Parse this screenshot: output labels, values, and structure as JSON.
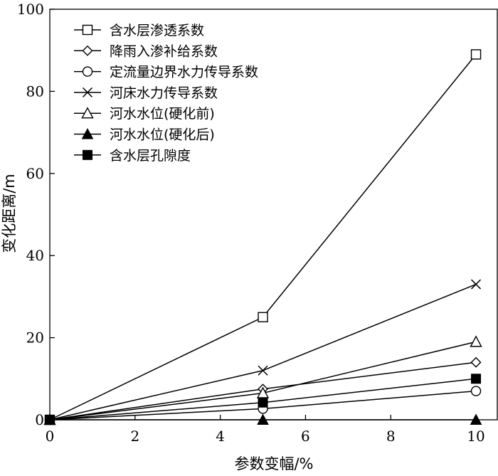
{
  "chart_data": {
    "type": "line",
    "xlabel": "参数变幅/%",
    "ylabel": "变化距离/m",
    "xlim": [
      0,
      10.5
    ],
    "ylim": [
      0,
      100
    ],
    "x_ticks": [
      0,
      2,
      4,
      6,
      8,
      10
    ],
    "y_ticks": [
      0,
      20,
      40,
      60,
      80,
      100
    ],
    "x_tick_labels": [
      "0",
      "2",
      "4",
      "6",
      "8",
      "10"
    ],
    "y_tick_labels": [
      "0",
      "20",
      "40",
      "60",
      "80",
      "100"
    ],
    "x": [
      0,
      5,
      10
    ],
    "grid": false,
    "legend_position": "top-left",
    "series": [
      {
        "name": "含水层渗透系数",
        "marker": "square-open",
        "values": [
          0,
          25,
          89
        ]
      },
      {
        "name": "降雨入渗补给系数",
        "marker": "diamond-open",
        "values": [
          0,
          7.5,
          14
        ]
      },
      {
        "name": "定流量边界水力传导系数",
        "marker": "circle-open",
        "values": [
          0,
          2.7,
          7
        ]
      },
      {
        "name": "河床水力传导系数",
        "marker": "cross",
        "values": [
          0,
          12,
          33
        ]
      },
      {
        "name": "河水水位(硬化前)",
        "marker": "triangle-open",
        "values": [
          0,
          6.5,
          19
        ]
      },
      {
        "name": "河水水位(硬化后)",
        "marker": "triangle-filled",
        "values": [
          0,
          0,
          0
        ]
      },
      {
        "name": "含水层孔隙度",
        "marker": "square-filled",
        "values": [
          0,
          4.2,
          10
        ]
      }
    ]
  }
}
